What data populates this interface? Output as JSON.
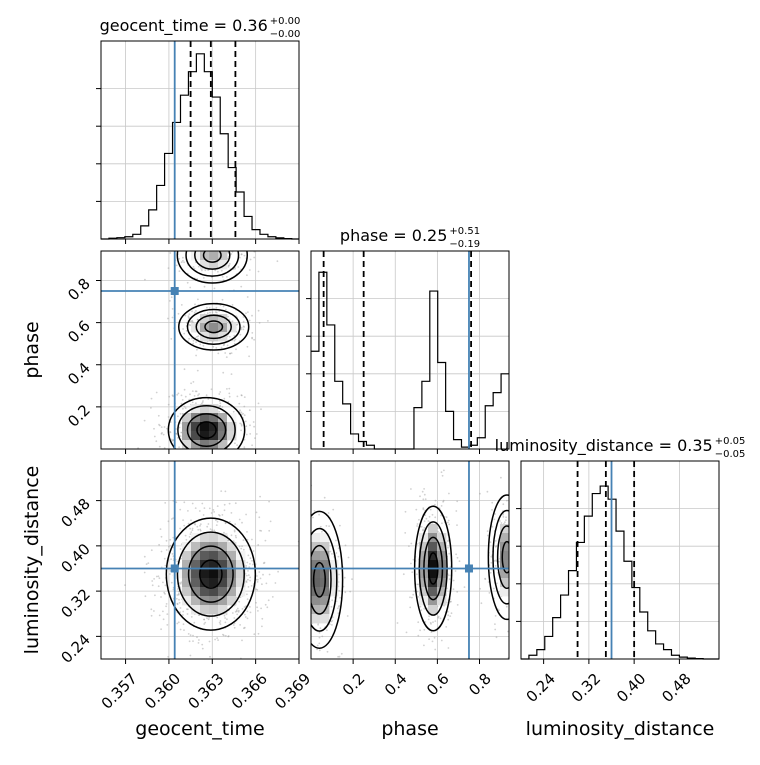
{
  "chart_data": {
    "type": "corner",
    "parameters": [
      "geocent_time",
      "phase",
      "luminosity_distance"
    ],
    "truths": {
      "geocent_time": 0.3604,
      "phase": 0.75,
      "luminosity_distance": 0.36
    },
    "titles": [
      {
        "param": "geocent_time",
        "text": "geocent_time = 0.36",
        "plus": "+0.00",
        "minus": "−0.00"
      },
      {
        "param": "phase",
        "text": "phase = 0.25",
        "plus": "+0.51",
        "minus": "−0.19"
      },
      {
        "param": "luminosity_distance",
        "text": "luminosity_distance = 0.35",
        "plus": "+0.05",
        "minus": "−0.05"
      }
    ],
    "axes": {
      "geocent_time": {
        "range": [
          0.3553,
          0.369
        ],
        "ticks": [
          "0.357",
          "0.360",
          "0.363",
          "0.366",
          "0.369"
        ],
        "tick_values": [
          0.357,
          0.36,
          0.363,
          0.366,
          0.369
        ],
        "label": "geocent_time"
      },
      "phase": {
        "range": [
          0.0,
          0.94
        ],
        "ticks": [
          "0.2",
          "0.4",
          "0.6",
          "0.8"
        ],
        "tick_values": [
          0.2,
          0.4,
          0.6,
          0.8
        ],
        "label": "phase"
      },
      "luminosity_distance": {
        "range": [
          0.2,
          0.55
        ],
        "ticks": [
          "0.24",
          "0.32",
          "0.40",
          "0.48"
        ],
        "tick_values": [
          0.24,
          0.32,
          0.4,
          0.48
        ],
        "label": "luminosity_distance"
      }
    },
    "histograms": {
      "geocent_time": {
        "edges": [
          0.3553,
          0.35585,
          0.3564,
          0.35695,
          0.3575,
          0.35805,
          0.3586,
          0.35915,
          0.3597,
          0.36025,
          0.3608,
          0.36135,
          0.3619,
          0.36245,
          0.363,
          0.36355,
          0.3641,
          0.36465,
          0.3652,
          0.36575,
          0.3663,
          0.36685,
          0.3674,
          0.36795,
          0.3685,
          0.369
        ],
        "counts": [
          0.0,
          0.004,
          0.007,
          0.012,
          0.025,
          0.07,
          0.155,
          0.285,
          0.455,
          0.62,
          0.765,
          0.89,
          0.985,
          0.89,
          0.755,
          0.56,
          0.38,
          0.25,
          0.12,
          0.05,
          0.025,
          0.012,
          0.006,
          0.002,
          0.0
        ],
        "quantiles": [
          0.3615,
          0.3629,
          0.3646
        ]
      },
      "phase": {
        "edges": [
          0.0,
          0.0376,
          0.0752,
          0.1128,
          0.1504,
          0.188,
          0.2256,
          0.2632,
          0.3008,
          0.3384,
          0.376,
          0.4136,
          0.4512,
          0.4888,
          0.5264,
          0.564,
          0.6016,
          0.6392,
          0.6768,
          0.7144,
          0.752,
          0.7896,
          0.8272,
          0.8648,
          0.9024,
          0.94
        ],
        "counts": [
          0.52,
          0.94,
          0.66,
          0.36,
          0.24,
          0.08,
          0.04,
          0.02,
          0.0,
          0.0,
          0.0,
          0.0,
          0.0,
          0.22,
          0.36,
          0.84,
          0.46,
          0.2,
          0.05,
          0.01,
          0.02,
          0.06,
          0.23,
          0.3,
          0.4
        ],
        "quantiles": [
          0.06,
          0.25,
          0.76
        ]
      },
      "luminosity_distance": {
        "edges": [
          0.2,
          0.214,
          0.228,
          0.242,
          0.256,
          0.27,
          0.284,
          0.298,
          0.312,
          0.326,
          0.34,
          0.354,
          0.368,
          0.382,
          0.396,
          0.41,
          0.424,
          0.438,
          0.452,
          0.466,
          0.48,
          0.494,
          0.508,
          0.522,
          0.536,
          0.55
        ],
        "counts": [
          0.0,
          0.02,
          0.05,
          0.12,
          0.22,
          0.34,
          0.47,
          0.62,
          0.76,
          0.88,
          0.92,
          0.85,
          0.68,
          0.52,
          0.38,
          0.25,
          0.15,
          0.08,
          0.05,
          0.02,
          0.01,
          0.005,
          0.002,
          0.0,
          0.0
        ],
        "quantiles": [
          0.3,
          0.35,
          0.4
        ]
      }
    },
    "density_blobs": {
      "geocent_time__phase": [
        {
          "x": 0.3626,
          "y": 0.09,
          "sx": 0.0012,
          "sy": 0.07,
          "w": 1.0
        },
        {
          "x": 0.3631,
          "y": 0.58,
          "sx": 0.0011,
          "sy": 0.05,
          "w": 0.55
        },
        {
          "x": 0.363,
          "y": 0.92,
          "sx": 0.0011,
          "sy": 0.06,
          "w": 0.45
        }
      ],
      "geocent_time__luminosity_distance": [
        {
          "x": 0.3629,
          "y": 0.35,
          "sx": 0.0014,
          "sy": 0.045,
          "w": 1.0
        }
      ],
      "phase__luminosity_distance": [
        {
          "x": 0.04,
          "y": 0.34,
          "sx": 0.05,
          "sy": 0.055,
          "w": 0.75
        },
        {
          "x": 0.58,
          "y": 0.36,
          "sx": 0.04,
          "sy": 0.05,
          "w": 1.0
        },
        {
          "x": 0.93,
          "y": 0.38,
          "sx": 0.04,
          "sy": 0.05,
          "w": 0.6
        }
      ]
    },
    "grid": true,
    "truth_color": "#4682b4",
    "quantile_style": "dashed"
  }
}
